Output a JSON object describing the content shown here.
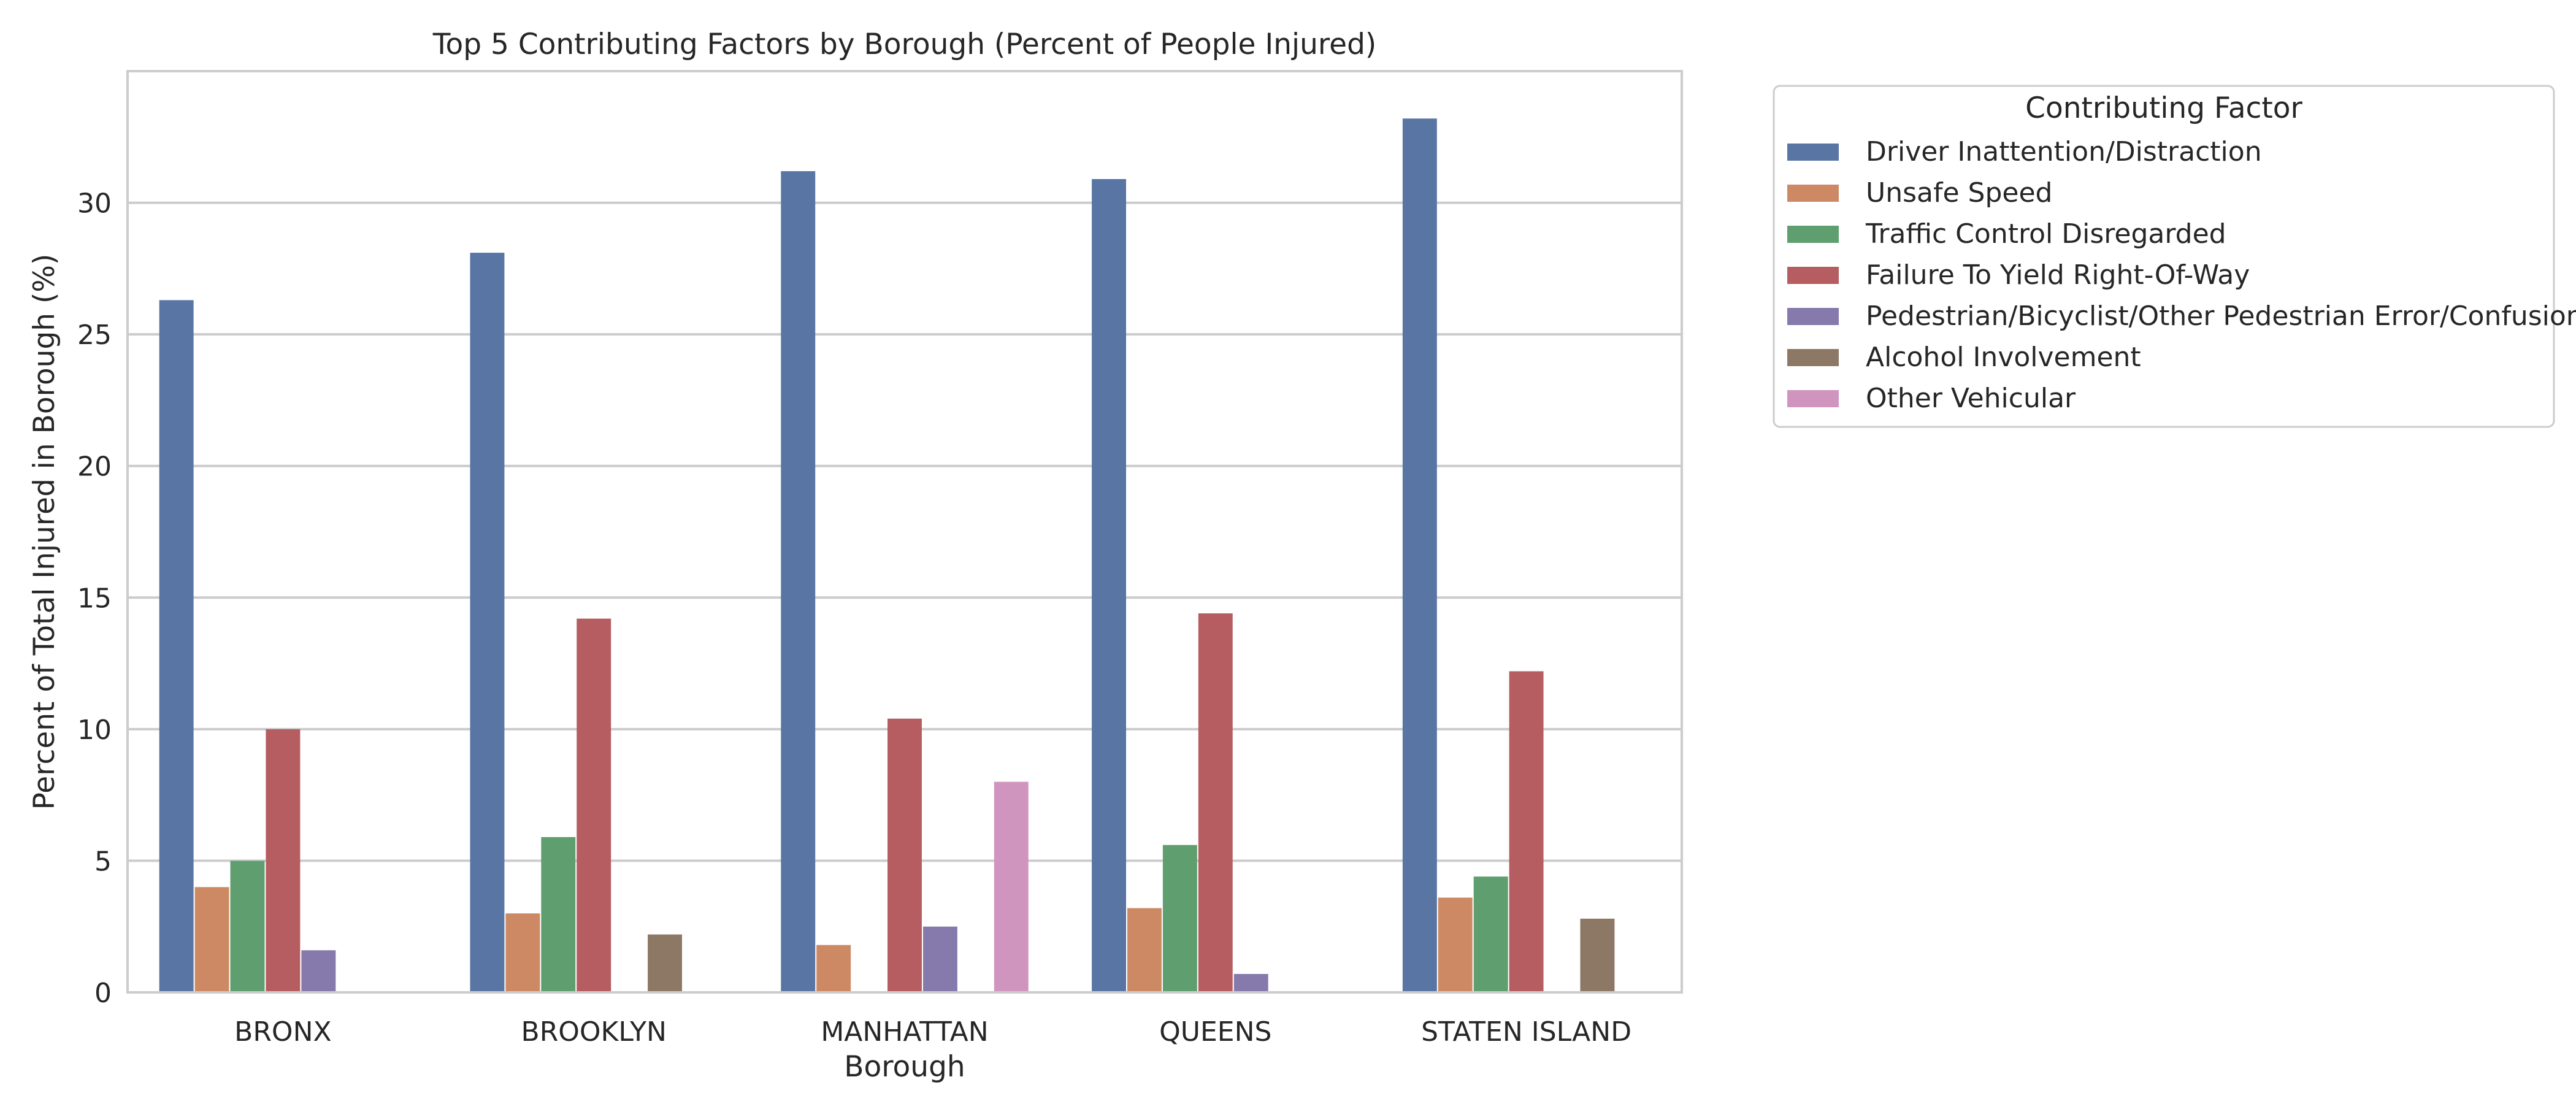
{
  "chart_data": {
    "type": "bar",
    "title": "Top 5 Contributing Factors by Borough (Percent of People Injured)",
    "xlabel": "Borough",
    "ylabel": "Percent of Total Injured in Borough (%)",
    "ylim": [
      0,
      35
    ],
    "yticks": [
      0,
      5,
      10,
      15,
      20,
      25,
      30
    ],
    "grid": true,
    "legend": {
      "title": "Contributing Factor",
      "placement": "outside-upper-right"
    },
    "categories": [
      "BRONX",
      "BROOKLYN",
      "MANHATTAN",
      "QUEENS",
      "STATEN ISLAND"
    ],
    "series": [
      {
        "name": "Driver Inattention/Distraction",
        "color": "#5875a4",
        "values": [
          26.3,
          28.1,
          31.2,
          30.9,
          33.2
        ]
      },
      {
        "name": "Unsafe Speed",
        "color": "#cc8963",
        "values": [
          4.0,
          3.0,
          1.8,
          3.2,
          3.6
        ]
      },
      {
        "name": "Traffic Control Disregarded",
        "color": "#5f9e6e",
        "values": [
          5.0,
          5.9,
          null,
          5.6,
          4.4
        ]
      },
      {
        "name": "Failure To Yield Right-Of-Way",
        "color": "#b55d60",
        "values": [
          10.0,
          14.2,
          10.4,
          14.4,
          12.2
        ]
      },
      {
        "name": "Pedestrian/Bicyclist/Other Pedestrian Error/Confusion",
        "color": "#857aab",
        "values": [
          1.6,
          null,
          2.5,
          0.7,
          null
        ]
      },
      {
        "name": "Alcohol Involvement",
        "color": "#8d7866",
        "values": [
          null,
          2.2,
          null,
          null,
          2.8
        ]
      },
      {
        "name": "Other Vehicular",
        "color": "#d095bf",
        "values": [
          null,
          null,
          8.0,
          null,
          null
        ]
      }
    ]
  }
}
